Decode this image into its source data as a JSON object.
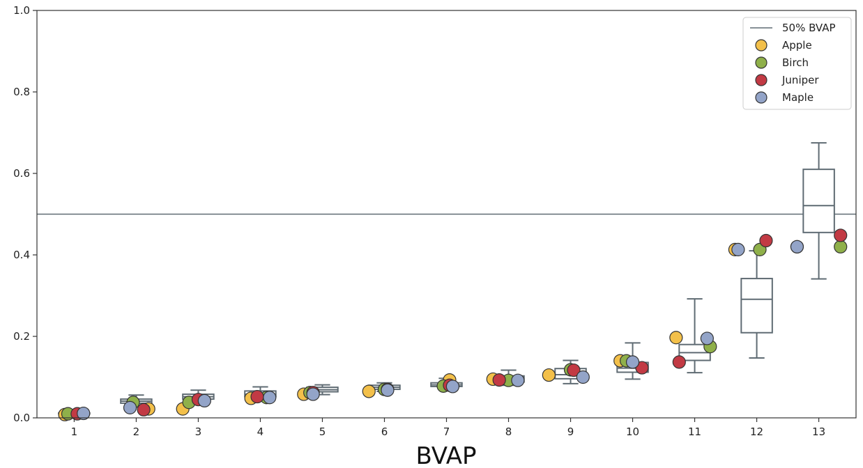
{
  "chart_data": {
    "type": "boxplot",
    "xlabel": "BVAP",
    "ylabel": "",
    "ylim": [
      0.0,
      1.0
    ],
    "yticks": [
      "0.0",
      "0.2",
      "0.4",
      "0.6",
      "0.8",
      "1.0"
    ],
    "categories": [
      "1",
      "2",
      "3",
      "4",
      "5",
      "6",
      "7",
      "8",
      "9",
      "10",
      "11",
      "12",
      "13"
    ],
    "reference_line": {
      "name": "50% BVAP",
      "y": 0.5,
      "color": "#5f6b73"
    },
    "grid": false,
    "legend_position": "top-right",
    "boxes": [
      {
        "whislo": 0.01,
        "q1": 0.01,
        "med": 0.011,
        "q3": 0.012,
        "whishi": 0.013
      },
      {
        "whislo": 0.03,
        "q1": 0.036,
        "med": 0.041,
        "q3": 0.046,
        "whishi": 0.056
      },
      {
        "whislo": 0.038,
        "q1": 0.046,
        "med": 0.052,
        "q3": 0.058,
        "whishi": 0.068
      },
      {
        "whislo": 0.048,
        "q1": 0.052,
        "med": 0.058,
        "q3": 0.066,
        "whishi": 0.076
      },
      {
        "whislo": 0.057,
        "q1": 0.064,
        "med": 0.069,
        "q3": 0.075,
        "whishi": 0.081
      },
      {
        "whislo": 0.065,
        "q1": 0.07,
        "med": 0.075,
        "q3": 0.08,
        "whishi": 0.086
      },
      {
        "whislo": 0.07,
        "q1": 0.077,
        "med": 0.081,
        "q3": 0.086,
        "whishi": 0.097
      },
      {
        "whislo": 0.08,
        "q1": 0.088,
        "med": 0.094,
        "q3": 0.103,
        "whishi": 0.117
      },
      {
        "whislo": 0.084,
        "q1": 0.096,
        "med": 0.106,
        "q3": 0.121,
        "whishi": 0.141
      },
      {
        "whislo": 0.095,
        "q1": 0.112,
        "med": 0.122,
        "q3": 0.136,
        "whishi": 0.184
      },
      {
        "whislo": 0.111,
        "q1": 0.141,
        "med": 0.16,
        "q3": 0.18,
        "whishi": 0.292
      },
      {
        "whislo": 0.147,
        "q1": 0.209,
        "med": 0.291,
        "q3": 0.342,
        "whishi": 0.41
      },
      {
        "whislo": 0.341,
        "q1": 0.455,
        "med": 0.521,
        "q3": 0.61,
        "whishi": 0.675
      }
    ],
    "series": [
      {
        "name": "Apple",
        "color": "#f3c04a",
        "offsets": [
          -0.15,
          0.2,
          -0.25,
          -0.15,
          -0.3,
          -0.25,
          0.05,
          -0.25,
          -0.35,
          -0.2,
          -0.3,
          -0.35,
          -0.35
        ],
        "values": [
          0.008,
          0.022,
          0.022,
          0.048,
          0.058,
          0.065,
          0.093,
          0.095,
          0.105,
          0.14,
          0.197,
          0.413,
          0.42
        ]
      },
      {
        "name": "Birch",
        "color": "#8fb04a",
        "offsets": [
          -0.1,
          -0.05,
          -0.15,
          0.1,
          -0.2,
          0.0,
          -0.05,
          0.0,
          0.0,
          -0.1,
          0.25,
          0.05,
          0.35
        ],
        "values": [
          0.01,
          0.038,
          0.038,
          0.05,
          0.062,
          0.07,
          0.078,
          0.092,
          0.118,
          0.14,
          0.175,
          0.413,
          0.42
        ]
      },
      {
        "name": "Juniper",
        "color": "#c23a44",
        "offsets": [
          0.05,
          0.12,
          0.0,
          -0.05,
          -0.15,
          0.05,
          0.05,
          -0.15,
          0.05,
          0.15,
          -0.25,
          0.15,
          0.35
        ],
        "values": [
          0.01,
          0.02,
          0.045,
          0.052,
          0.062,
          0.07,
          0.08,
          0.093,
          0.117,
          0.123,
          0.137,
          0.435,
          0.448
        ]
      },
      {
        "name": "Maple",
        "color": "#93a4c8",
        "offsets": [
          0.15,
          -0.1,
          0.1,
          0.15,
          -0.15,
          0.05,
          0.1,
          0.15,
          0.2,
          0.0,
          0.2,
          -0.3,
          -0.35
        ],
        "values": [
          0.011,
          0.025,
          0.042,
          0.05,
          0.058,
          0.068,
          0.077,
          0.092,
          0.1,
          0.137,
          0.195,
          0.413,
          0.42
        ]
      }
    ]
  }
}
